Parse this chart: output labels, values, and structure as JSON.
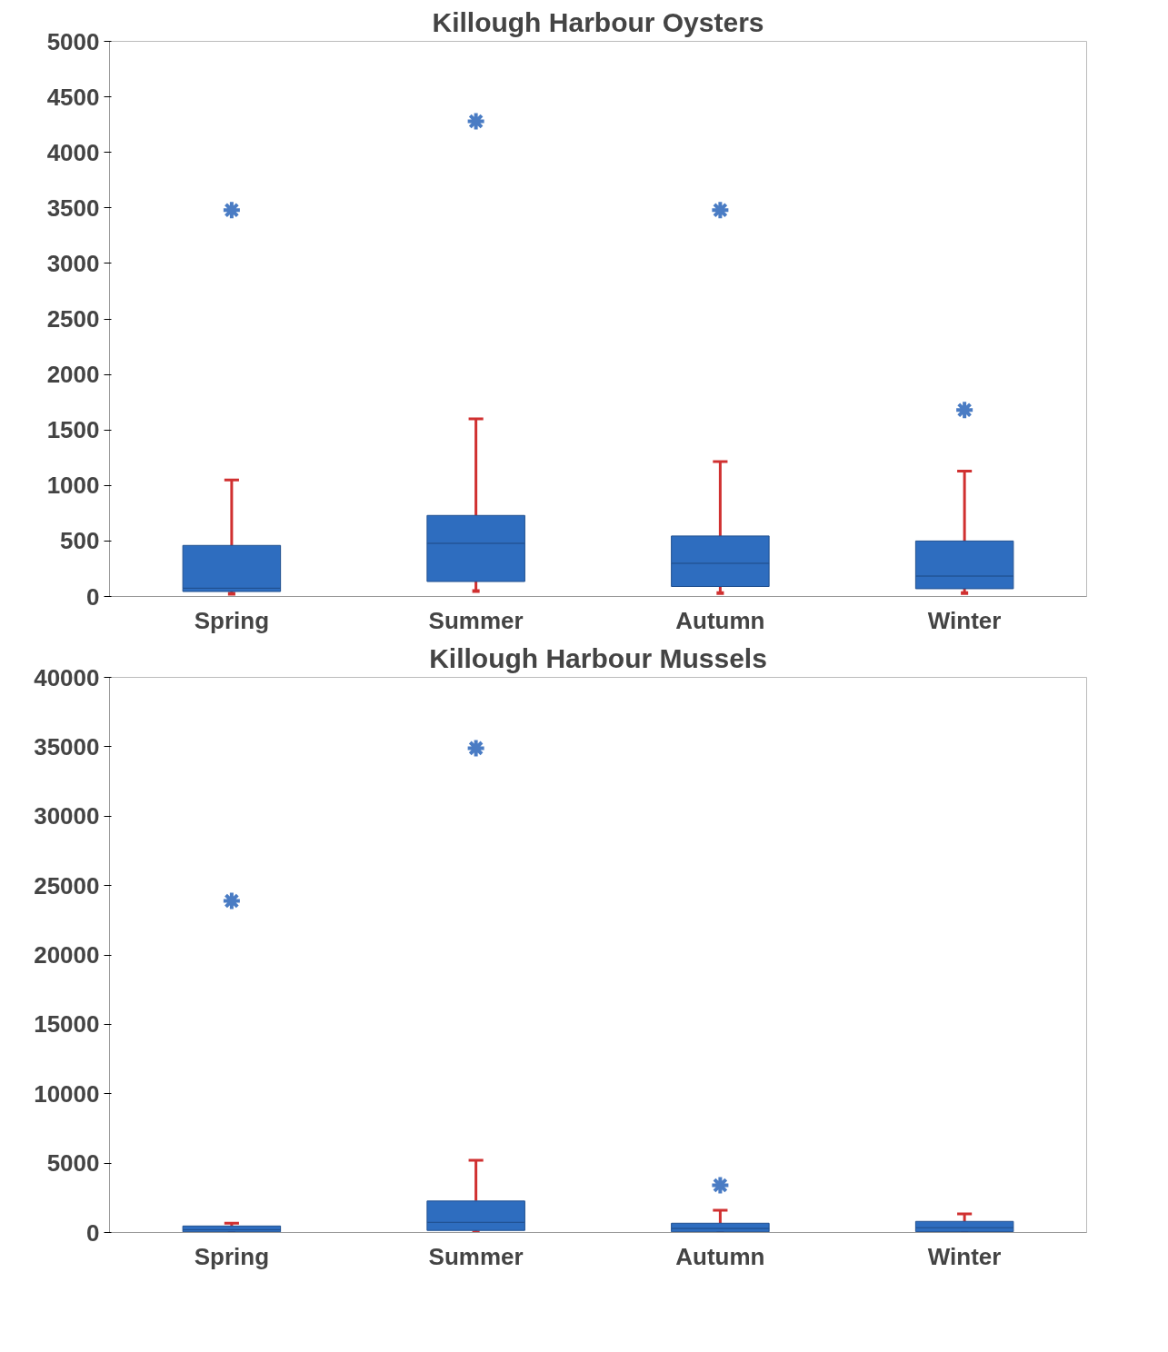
{
  "chart_data": [
    {
      "type": "box",
      "title": "Killough Harbour Oysters",
      "categories": [
        "Spring",
        "Summer",
        "Autumn",
        "Winter"
      ],
      "ylim": [
        0,
        5000
      ],
      "yticks": [
        0,
        500,
        1000,
        1500,
        2000,
        2500,
        3000,
        3500,
        4000,
        4500,
        5000
      ],
      "grid": false,
      "series": [
        {
          "color": "#2e6dbf",
          "boxes": [
            {
              "low": 25,
              "q1": 45,
              "median": 75,
              "q3": 460,
              "high": 1050,
              "outliers": [
                3480
              ]
            },
            {
              "low": 50,
              "q1": 135,
              "median": 480,
              "q3": 730,
              "high": 1600,
              "outliers": [
                4280
              ]
            },
            {
              "low": 30,
              "q1": 90,
              "median": 300,
              "q3": 545,
              "high": 1215,
              "outliers": [
                3480
              ]
            },
            {
              "low": 30,
              "q1": 70,
              "median": 185,
              "q3": 500,
              "high": 1130,
              "outliers": [
                1680
              ]
            }
          ]
        }
      ]
    },
    {
      "type": "box",
      "title": "Killough Harbour Mussels",
      "categories": [
        "Spring",
        "Summer",
        "Autumn",
        "Winter"
      ],
      "ylim": [
        0,
        40000
      ],
      "yticks": [
        0,
        5000,
        10000,
        15000,
        20000,
        25000,
        30000,
        35000,
        40000
      ],
      "grid": false,
      "series": [
        {
          "color": "#2e6dbf",
          "boxes": [
            {
              "low": 0,
              "q1": 50,
              "median": 200,
              "q3": 470,
              "high": 670,
              "outliers": [
                23900
              ]
            },
            {
              "low": 0,
              "q1": 150,
              "median": 735,
              "q3": 2270,
              "high": 5200,
              "outliers": [
                34900
              ]
            },
            {
              "low": 0,
              "q1": 50,
              "median": 300,
              "q3": 670,
              "high": 1600,
              "outliers": [
                3400
              ]
            },
            {
              "low": 0,
              "q1": 60,
              "median": 350,
              "q3": 800,
              "high": 1340
            }
          ]
        }
      ]
    }
  ]
}
